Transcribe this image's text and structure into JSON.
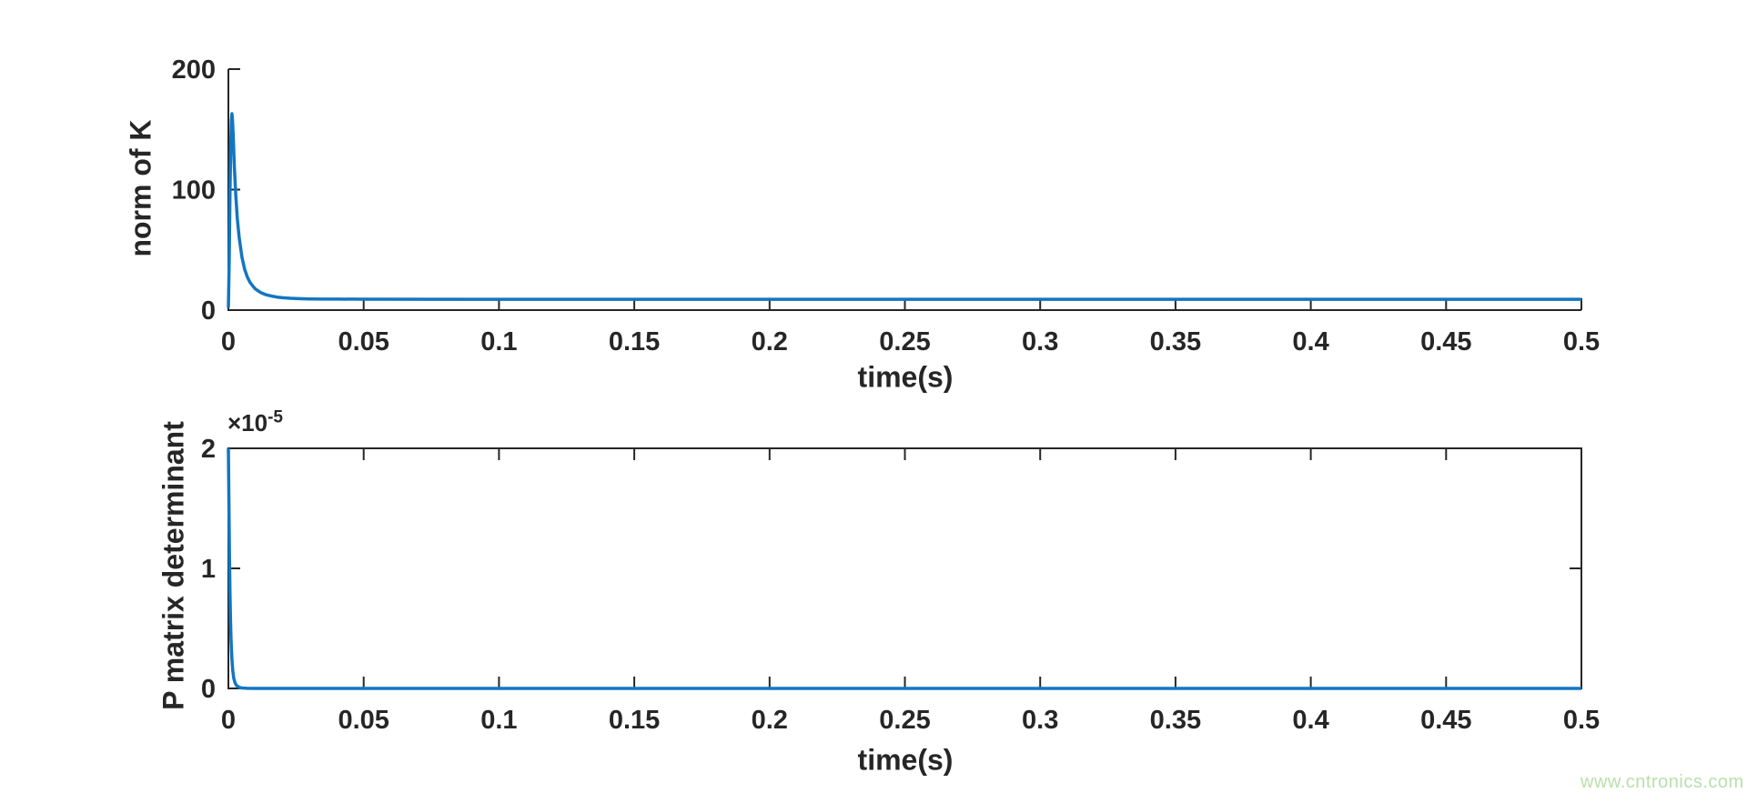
{
  "figure": {
    "background": "#ffffff",
    "axis_color": "#262626",
    "line_color": "#1276c2"
  },
  "watermark": {
    "text": "www.cntronics.com",
    "color": "#b9e0ab"
  },
  "chart_data": [
    {
      "id": "top-plot",
      "type": "line",
      "title": "",
      "xlabel": "time(s)",
      "ylabel": "norm of K",
      "xlim": [
        0,
        0.5
      ],
      "ylim": [
        0,
        200
      ],
      "grid": false,
      "box": false,
      "legend": null,
      "xticks": {
        "values": [
          0,
          0.05,
          0.1,
          0.15,
          0.2,
          0.25,
          0.3,
          0.35,
          0.4,
          0.45,
          0.5
        ],
        "labels": [
          "0",
          "0.05",
          "0.1",
          "0.15",
          "0.2",
          "0.25",
          "0.3",
          "0.35",
          "0.4",
          "0.45",
          "0.5"
        ]
      },
      "yticks": {
        "values": [
          0,
          100,
          200
        ],
        "labels": [
          "0",
          "100",
          "200"
        ]
      },
      "series": [
        {
          "name": "norm of K",
          "color": "#1276c2",
          "points": [
            [
              0,
              2
            ],
            [
              0.0003,
              40
            ],
            [
              0.0006,
              100
            ],
            [
              0.0009,
              140
            ],
            [
              0.0011,
              157
            ],
            [
              0.0013,
              163
            ],
            [
              0.0015,
              158
            ],
            [
              0.0018,
              143
            ],
            [
              0.0022,
              120
            ],
            [
              0.0027,
              97
            ],
            [
              0.0033,
              76
            ],
            [
              0.004,
              60
            ],
            [
              0.005,
              44
            ],
            [
              0.006,
              34
            ],
            [
              0.007,
              27.5
            ],
            [
              0.008,
              23
            ],
            [
              0.009,
              20
            ],
            [
              0.01,
              17.5
            ],
            [
              0.012,
              14.5
            ],
            [
              0.014,
              12.7
            ],
            [
              0.016,
              11.6
            ],
            [
              0.018,
              10.8
            ],
            [
              0.02,
              10.3
            ],
            [
              0.023,
              9.8
            ],
            [
              0.026,
              9.5
            ],
            [
              0.03,
              9.3
            ],
            [
              0.035,
              9.15
            ],
            [
              0.04,
              9.1
            ],
            [
              0.05,
              9.05
            ],
            [
              0.1,
              9
            ],
            [
              0.15,
              9
            ],
            [
              0.2,
              9
            ],
            [
              0.25,
              9
            ],
            [
              0.3,
              9
            ],
            [
              0.35,
              9
            ],
            [
              0.4,
              9
            ],
            [
              0.45,
              9
            ],
            [
              0.5,
              9
            ]
          ]
        }
      ]
    },
    {
      "id": "bottom-plot",
      "type": "line",
      "title": "",
      "xlabel": "time(s)",
      "ylabel": "P matrix determinant",
      "y_exponent": {
        "base": "×10",
        "power": "-5"
      },
      "xlim": [
        0,
        0.5
      ],
      "ylim": [
        0,
        2e-05
      ],
      "grid": false,
      "box": true,
      "legend": null,
      "xticks": {
        "values": [
          0,
          0.05,
          0.1,
          0.15,
          0.2,
          0.25,
          0.3,
          0.35,
          0.4,
          0.45,
          0.5
        ],
        "labels": [
          "0",
          "0.05",
          "0.1",
          "0.15",
          "0.2",
          "0.25",
          "0.3",
          "0.35",
          "0.4",
          "0.45",
          "0.5"
        ]
      },
      "yticks": {
        "values": [
          0,
          1e-05,
          2e-05
        ],
        "labels": [
          "0",
          "1",
          "2"
        ]
      },
      "series": [
        {
          "name": "P matrix determinant",
          "color": "#1276c2",
          "points": [
            [
              0,
              2e-05
            ],
            [
              0.0002,
              1.55e-05
            ],
            [
              0.0004,
              1.1e-05
            ],
            [
              0.0006,
              7.8e-06
            ],
            [
              0.0008,
              5.5e-06
            ],
            [
              0.001,
              3.9e-06
            ],
            [
              0.0013,
              2.4e-06
            ],
            [
              0.0016,
              1.5e-06
            ],
            [
              0.002,
              8.5e-07
            ],
            [
              0.0025,
              4.5e-07
            ],
            [
              0.003,
              2.5e-07
            ],
            [
              0.004,
              9e-08
            ],
            [
              0.005,
              4e-08
            ],
            [
              0.007,
              1e-08
            ],
            [
              0.01,
              3e-09
            ],
            [
              0.02,
              0
            ],
            [
              0.05,
              0
            ],
            [
              0.1,
              0
            ],
            [
              0.15,
              0
            ],
            [
              0.2,
              0
            ],
            [
              0.25,
              0
            ],
            [
              0.3,
              0
            ],
            [
              0.35,
              0
            ],
            [
              0.4,
              0
            ],
            [
              0.45,
              0
            ],
            [
              0.5,
              0
            ]
          ]
        }
      ]
    }
  ]
}
